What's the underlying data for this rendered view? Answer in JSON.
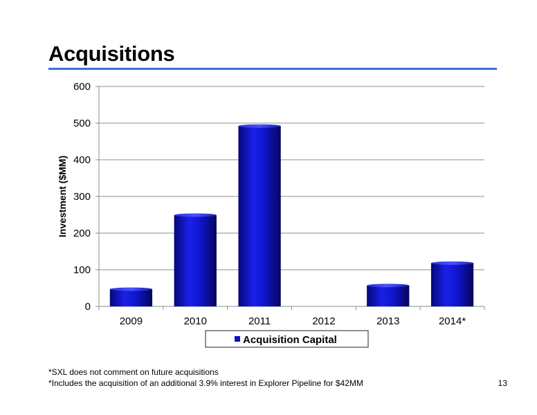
{
  "slide": {
    "title": "Acquisitions",
    "page_number": "13",
    "footnotes": [
      "*SXL does not comment on future acquisitions",
      "*Includes the acquisition of an additional 3.9% interest in Explorer Pipeline for $42MM"
    ]
  },
  "colors": {
    "title_rule": "#3a6fd8",
    "bar": "#0b10c8",
    "gridline": "#8c8c8c"
  },
  "chart_data": {
    "type": "bar",
    "title": "",
    "xlabel": "",
    "ylabel": "Investment ($MM)",
    "categories": [
      "2009",
      "2010",
      "2011",
      "2012",
      "2013",
      "2014*"
    ],
    "series": [
      {
        "name": "Acquisition Capital",
        "values": [
          47,
          249,
          492,
          0,
          57,
          118
        ]
      }
    ],
    "ylim": [
      0,
      600
    ],
    "yticks": [
      0,
      100,
      200,
      300,
      400,
      500,
      600
    ],
    "grid": true,
    "legend": "bottom"
  }
}
